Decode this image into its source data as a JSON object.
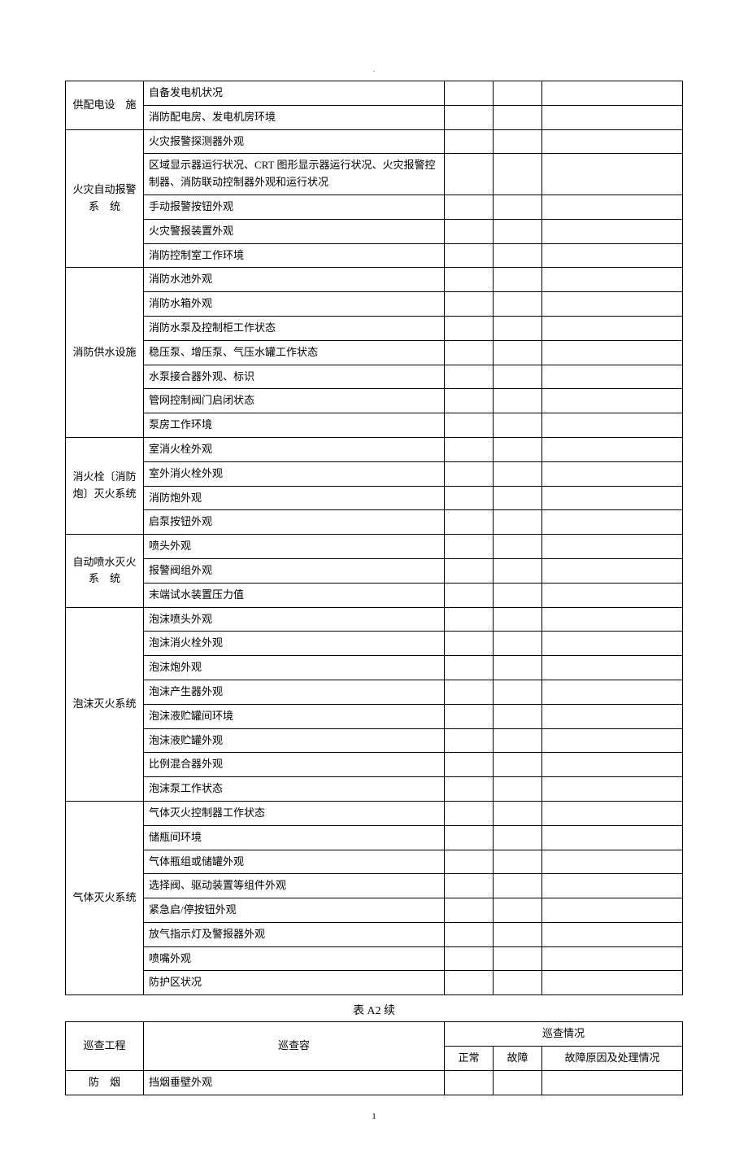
{
  "page": {
    "header_dot": ".",
    "page_number": "1",
    "table2_title": "表 A2  续"
  },
  "groups": [
    {
      "category": "供配电设　施",
      "cat_class": "col-cat",
      "items": [
        "自备发电机状况",
        "消防配电房、发电机房环境"
      ]
    },
    {
      "category": "火灾自动报警系　统",
      "items": [
        "火灾报警探测器外观",
        "区域显示器运行状况、CRT 图形显示器运行状况、火灾报警控制器、消防联动控制器外观和运行状况",
        "手动报警按钮外观",
        "火灾警报装置外观",
        "消防控制室工作环境"
      ]
    },
    {
      "category": "消防供水设施",
      "items": [
        "消防水池外观",
        "消防水箱外观",
        "消防水泵及控制柜工作状态",
        "稳压泵、增压泵、气压水罐工作状态",
        "水泵接合器外观、标识",
        "管网控制阀门启闭状态",
        "泵房工作环境"
      ]
    },
    {
      "category": "消火栓〔消防炮〕灭火系统",
      "items": [
        "室消火栓外观",
        "室外消火栓外观",
        "消防炮外观",
        "启泵按钮外观"
      ]
    },
    {
      "category": "自动喷水灭火系　统",
      "items": [
        "喷头外观",
        "报警阀组外观",
        "末端试水装置压力值"
      ]
    },
    {
      "category": "泡沫灭火系统",
      "items": [
        "泡沫喷头外观",
        "泡沫消火栓外观",
        "泡沫炮外观",
        "泡沫产生器外观",
        "泡沫液贮罐间环境",
        "泡沫液贮罐外观",
        "比例混合器外观",
        "泡沫泵工作状态"
      ]
    },
    {
      "category": "气体灭火系统",
      "items": [
        "气体灭火控制器工作状态",
        "储瓶间环境",
        "气体瓶组或储罐外观",
        "选择阀、驱动装置等组件外观",
        "紧急启/停按钮外观",
        "放气指示灯及警报器外观",
        "喷嘴外观",
        "防护区状况"
      ]
    }
  ],
  "table2": {
    "headers": {
      "col1": "巡查工程",
      "col2": "巡查容",
      "col_group": "巡查情况",
      "col3a": "正常",
      "col3b": "故障",
      "col3c": "故障原因及处理情况"
    },
    "row": {
      "category": "防　烟",
      "item": "挡烟垂壁外观"
    }
  },
  "style": {
    "background_color": "#ffffff",
    "border_color": "#000000",
    "text_color": "#000000",
    "font_family": "SimSun",
    "font_size_pt": 10
  }
}
